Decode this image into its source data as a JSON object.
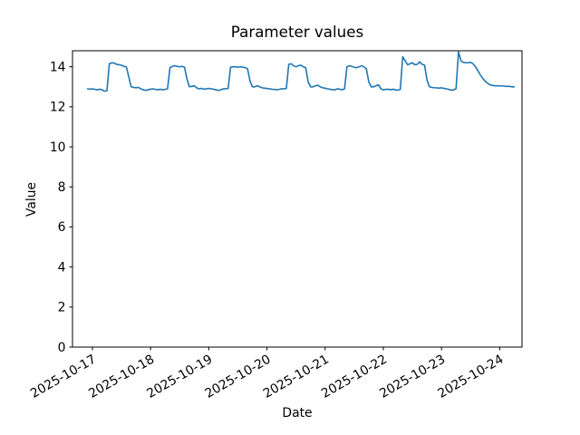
{
  "chart_data": {
    "type": "line",
    "title": "Parameter values",
    "xlabel": "Date",
    "ylabel": "Value",
    "line_color": "#1f77b4",
    "background_color": "#ffffff",
    "grid": false,
    "legend": null,
    "x_tick_labels": [
      "2025-10-17",
      "2025-10-18",
      "2025-10-19",
      "2025-10-20",
      "2025-10-21",
      "2025-10-22",
      "2025-10-23",
      "2025-10-24"
    ],
    "x_tick_hours": [
      0,
      24,
      48,
      72,
      96,
      120,
      144,
      168
    ],
    "x_tick_rotation_deg": 30,
    "y_ticks": [
      0,
      2,
      4,
      6,
      8,
      10,
      12,
      14
    ],
    "ylim": [
      0,
      14.8
    ],
    "xlim_hours": [
      -8.2,
      177.2
    ],
    "series": [
      {
        "name": "Parameter values",
        "start_hour": -2,
        "step_hours": 1,
        "values": [
          12.9,
          12.88,
          12.9,
          12.87,
          12.85,
          12.88,
          12.85,
          12.78,
          12.8,
          14.15,
          14.2,
          14.18,
          14.12,
          14.1,
          14.08,
          14.02,
          14.0,
          13.5,
          13.0,
          12.97,
          12.95,
          12.97,
          12.9,
          12.85,
          12.82,
          12.85,
          12.88,
          12.9,
          12.87,
          12.85,
          12.88,
          12.85,
          12.87,
          12.9,
          13.95,
          14.02,
          14.05,
          14.02,
          14.0,
          14.02,
          13.98,
          13.4,
          13.0,
          13.02,
          13.05,
          12.95,
          12.9,
          12.92,
          12.88,
          12.9,
          12.92,
          12.9,
          12.88,
          12.85,
          12.82,
          12.85,
          12.9,
          12.9,
          12.92,
          13.98,
          14.0,
          14.0,
          13.98,
          14.0,
          13.98,
          13.96,
          13.9,
          13.3,
          13.0,
          13.0,
          13.05,
          13.0,
          12.95,
          12.93,
          12.92,
          12.9,
          12.88,
          12.87,
          12.85,
          12.87,
          12.9,
          12.9,
          12.92,
          14.12,
          14.15,
          14.05,
          14.0,
          14.05,
          14.08,
          14.0,
          13.95,
          13.25,
          13.0,
          13.0,
          13.05,
          13.08,
          13.0,
          12.95,
          12.93,
          12.9,
          12.88,
          12.85,
          12.85,
          12.9,
          12.88,
          12.85,
          12.9,
          14.0,
          14.05,
          14.02,
          13.98,
          13.95,
          14.0,
          14.05,
          14.0,
          13.9,
          13.25,
          13.0,
          13.0,
          13.05,
          13.1,
          12.9,
          12.85,
          12.87,
          12.88,
          12.85,
          12.88,
          12.85,
          12.83,
          12.87,
          14.5,
          14.3,
          14.1,
          14.15,
          14.2,
          14.1,
          14.12,
          14.25,
          14.12,
          14.08,
          13.35,
          13.0,
          12.97,
          12.95,
          12.95,
          12.93,
          12.95,
          12.92,
          12.9,
          12.87,
          12.83,
          12.85,
          12.9,
          14.75,
          14.3,
          14.22,
          14.2,
          14.2,
          14.22,
          14.15,
          14.0,
          13.8,
          13.6,
          13.42,
          13.28,
          13.18,
          13.1,
          13.07,
          13.05,
          13.05,
          13.05,
          13.04,
          13.03,
          13.02,
          13.02,
          13.0,
          13.0
        ]
      }
    ]
  }
}
